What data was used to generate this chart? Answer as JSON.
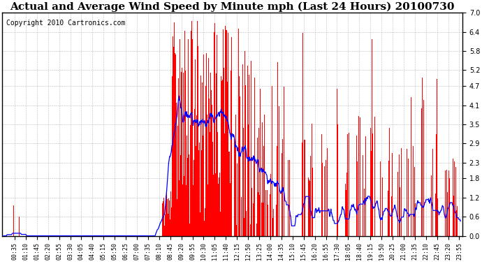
{
  "title": "Actual and Average Wind Speed by Minute mph (Last 24 Hours) 20100730",
  "copyright": "Copyright 2010 Cartronics.com",
  "yticks": [
    0.0,
    0.6,
    1.2,
    1.8,
    2.3,
    2.9,
    3.5,
    4.1,
    4.7,
    5.2,
    5.8,
    6.4,
    7.0
  ],
  "ylim": [
    0.0,
    7.0
  ],
  "bar_color": "#FF0000",
  "line_color": "#0000FF",
  "background_color": "#FFFFFF",
  "grid_color": "#AAAAAA",
  "title_fontsize": 11,
  "copyright_fontsize": 7,
  "avg_window": 45
}
